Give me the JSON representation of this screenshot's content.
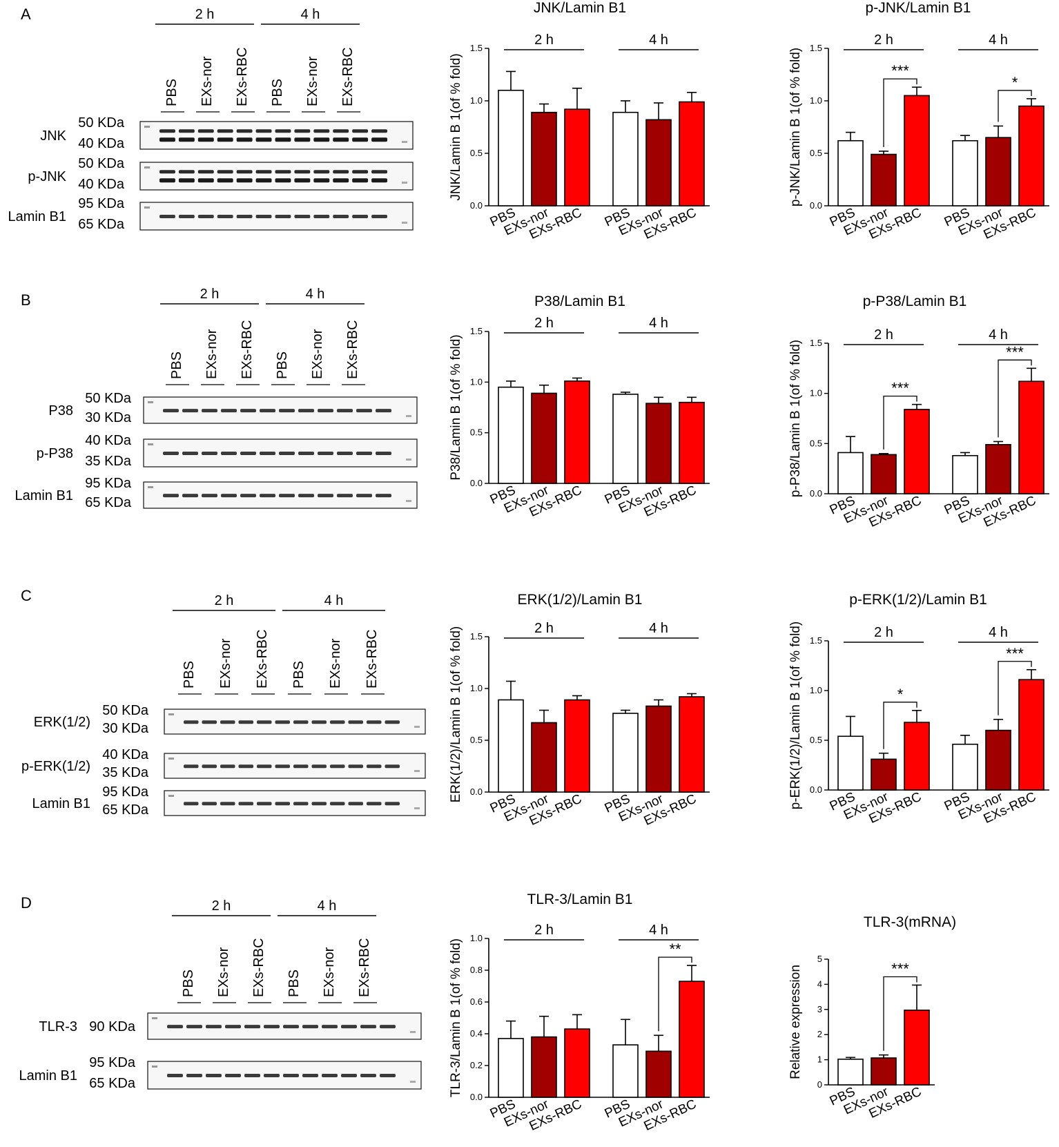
{
  "colors": {
    "white_bar": "#ffffff",
    "dark_bar": "#a00000",
    "red_bar": "#ff0000",
    "axis": "#000000"
  },
  "panels": [
    {
      "letter": "A",
      "blot": {
        "time_labels": [
          "2 h",
          "4 h"
        ],
        "lane_labels": [
          "PBS",
          "EXs-nor",
          "EXs-RBC",
          "PBS",
          "EXs-nor",
          "EXs-RBC"
        ],
        "rows": [
          {
            "protein": "JNK",
            "markers": [
              "50 KDa",
              "40 KDa"
            ],
            "bands": 2
          },
          {
            "protein": "p-JNK",
            "markers": [
              "50 KDa",
              "40 KDa"
            ],
            "bands": 2
          },
          {
            "protein": "Lamin B1",
            "markers": [
              "95 KDa",
              "65 KDa"
            ],
            "bands": 1
          }
        ]
      }
    },
    {
      "letter": "B",
      "blot": {
        "time_labels": [
          "2 h",
          "4 h"
        ],
        "lane_labels": [
          "PBS",
          "EXs-nor",
          "EXs-RBC",
          "PBS",
          "EXs-nor",
          "EXs-RBC"
        ],
        "rows": [
          {
            "protein": "P38",
            "markers": [
              "50 KDa",
              "30 KDa"
            ],
            "bands": 1
          },
          {
            "protein": "p-P38",
            "markers": [
              "40 KDa",
              "35 KDa"
            ],
            "bands": 1
          },
          {
            "protein": "Lamin B1",
            "markers": [
              "95 KDa",
              "65 KDa"
            ],
            "bands": 1
          }
        ]
      }
    },
    {
      "letter": "C",
      "blot": {
        "time_labels": [
          "2 h",
          "4 h"
        ],
        "lane_labels": [
          "PBS",
          "EXs-nor",
          "EXs-RBC",
          "PBS",
          "EXs-nor",
          "EXs-RBC"
        ],
        "rows": [
          {
            "protein": "ERK(1/2)",
            "markers": [
              "50 KDa",
              "30 KDa"
            ],
            "bands": 1
          },
          {
            "protein": "p-ERK(1/2)",
            "markers": [
              "40 KDa",
              "35 KDa"
            ],
            "bands": 1
          },
          {
            "protein": "Lamin B1",
            "markers": [
              "95 KDa",
              "65 KDa"
            ],
            "bands": 1
          }
        ]
      }
    },
    {
      "letter": "D",
      "blot": {
        "time_labels": [
          "2 h",
          "4 h"
        ],
        "lane_labels": [
          "PBS",
          "EXs-nor",
          "EXs-RBC",
          "PBS",
          "EXs-nor",
          "EXs-RBC"
        ],
        "rows": [
          {
            "protein": "TLR-3",
            "markers": [
              "90 KDa"
            ],
            "bands": 1
          },
          {
            "protein": "Lamin B1",
            "markers": [
              "95 KDa",
              "65 KDa"
            ],
            "bands": 1
          }
        ]
      }
    }
  ],
  "chart_data": [
    {
      "type": "bar",
      "panel": "A",
      "title": "JNK/Lamin B1",
      "ylabel": "JNK/Lamin B 1(of % fold)",
      "ylim": [
        0,
        1.5
      ],
      "yticks": [
        "0.0",
        "0.5",
        "1.0",
        "1.5"
      ],
      "groups": [
        "2 h",
        "4 h"
      ],
      "categories": [
        "PBS",
        "EXs-nor",
        "EXs-RBC"
      ],
      "values": [
        [
          1.1,
          0.89,
          0.92
        ],
        [
          0.89,
          0.82,
          0.99
        ]
      ],
      "errors": [
        [
          0.18,
          0.08,
          0.2
        ],
        [
          0.11,
          0.16,
          0.09
        ]
      ],
      "significance": []
    },
    {
      "type": "bar",
      "panel": "A",
      "title": "p-JNK/Lamin B1",
      "ylabel": "p-JNK/Lamin B 1(of % fold)",
      "ylim": [
        0,
        1.5
      ],
      "yticks": [
        "0.0",
        "0.5",
        "1.0",
        "1.5"
      ],
      "groups": [
        "2 h",
        "4 h"
      ],
      "categories": [
        "PBS",
        "EXs-nor",
        "EXs-RBC"
      ],
      "values": [
        [
          0.62,
          0.49,
          1.05
        ],
        [
          0.62,
          0.65,
          0.95
        ]
      ],
      "errors": [
        [
          0.08,
          0.03,
          0.08
        ],
        [
          0.05,
          0.11,
          0.07
        ]
      ],
      "significance": [
        {
          "group": 0,
          "label": "***"
        },
        {
          "group": 1,
          "label": "*"
        }
      ]
    },
    {
      "type": "bar",
      "panel": "B",
      "title": "P38/Lamin B1",
      "ylabel": "P38/Lamin B 1(of % fold)",
      "ylim": [
        0,
        1.5
      ],
      "yticks": [
        "0.0",
        "0.5",
        "1.0",
        "1.5"
      ],
      "groups": [
        "2 h",
        "4 h"
      ],
      "categories": [
        "PBS",
        "EXs-nor",
        "EXs-RBC"
      ],
      "values": [
        [
          0.95,
          0.89,
          1.01
        ],
        [
          0.88,
          0.79,
          0.8
        ]
      ],
      "errors": [
        [
          0.06,
          0.08,
          0.03
        ],
        [
          0.02,
          0.06,
          0.05
        ]
      ],
      "significance": []
    },
    {
      "type": "bar",
      "panel": "B",
      "title": "p-P38/Lamin B1",
      "ylabel": "p-P38/Lamin B 1(of % fold)",
      "ylim": [
        0,
        1.5
      ],
      "yticks": [
        "0.0",
        "0.5",
        "1.0",
        "1.5"
      ],
      "groups": [
        "2 h",
        "4 h"
      ],
      "categories": [
        "PBS",
        "EXs-nor",
        "EXs-RBC"
      ],
      "values": [
        [
          0.41,
          0.39,
          0.84
        ],
        [
          0.38,
          0.49,
          1.12
        ]
      ],
      "errors": [
        [
          0.16,
          0.01,
          0.05
        ],
        [
          0.03,
          0.03,
          0.13
        ]
      ],
      "significance": [
        {
          "group": 0,
          "label": "***"
        },
        {
          "group": 1,
          "label": "***"
        }
      ]
    },
    {
      "type": "bar",
      "panel": "C",
      "title": "ERK(1/2)/Lamin B1",
      "ylabel": "ERK(1/2)/Lamin B 1(of % fold)",
      "ylim": [
        0,
        1.5
      ],
      "yticks": [
        "0.0",
        "0.5",
        "1.0",
        "1.5"
      ],
      "groups": [
        "2 h",
        "4 h"
      ],
      "categories": [
        "PBS",
        "EXs-nor",
        "EXs-RBC"
      ],
      "values": [
        [
          0.89,
          0.67,
          0.89
        ],
        [
          0.76,
          0.83,
          0.92
        ]
      ],
      "errors": [
        [
          0.18,
          0.12,
          0.04
        ],
        [
          0.03,
          0.06,
          0.03
        ]
      ],
      "significance": []
    },
    {
      "type": "bar",
      "panel": "C",
      "title": "p-ERK(1/2)/Lamin B1",
      "ylabel": "p-ERK(1/2)/Lamin B 1(of % fold)",
      "ylim": [
        0,
        1.5
      ],
      "yticks": [
        "0.0",
        "0.5",
        "1.0",
        "1.5"
      ],
      "groups": [
        "2 h",
        "4 h"
      ],
      "categories": [
        "PBS",
        "EXs-nor",
        "EXs-RBC"
      ],
      "values": [
        [
          0.54,
          0.31,
          0.68
        ],
        [
          0.46,
          0.6,
          1.11
        ]
      ],
      "errors": [
        [
          0.2,
          0.06,
          0.12
        ],
        [
          0.09,
          0.11,
          0.1
        ]
      ],
      "significance": [
        {
          "group": 0,
          "label": "*"
        },
        {
          "group": 1,
          "label": "***"
        }
      ]
    },
    {
      "type": "bar",
      "panel": "D",
      "title": "TLR-3/Lamin B1",
      "ylabel": "TLR-3/Lamin B 1(of % fold)",
      "ylim": [
        0,
        1.0
      ],
      "yticks": [
        "0.0",
        "0.2",
        "0.4",
        "0.6",
        "0.8",
        "1.0"
      ],
      "groups": [
        "2 h",
        "4 h"
      ],
      "categories": [
        "PBS",
        "EXs-nor",
        "EXs-RBC"
      ],
      "values": [
        [
          0.37,
          0.38,
          0.43
        ],
        [
          0.33,
          0.29,
          0.73
        ]
      ],
      "errors": [
        [
          0.11,
          0.13,
          0.09
        ],
        [
          0.16,
          0.1,
          0.1
        ]
      ],
      "significance": [
        {
          "group": 1,
          "label": "**"
        }
      ]
    },
    {
      "type": "bar",
      "panel": "D",
      "title": "TLR-3(mRNA)",
      "ylabel": "Relative expression",
      "ylim": [
        0,
        5
      ],
      "yticks": [
        "0",
        "1",
        "2",
        "3",
        "4",
        "5"
      ],
      "groups": [
        ""
      ],
      "categories": [
        "PBS",
        "EXs-nor",
        "EXs-RBC"
      ],
      "values": [
        [
          1.02,
          1.07,
          2.97
        ]
      ],
      "errors": [
        [
          0.07,
          0.12,
          1.0
        ]
      ],
      "significance": [
        {
          "group": 0,
          "label": "***"
        }
      ]
    }
  ]
}
